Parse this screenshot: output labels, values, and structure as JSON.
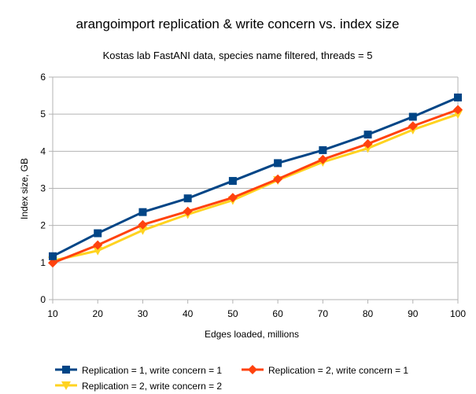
{
  "chart_data": {
    "type": "line",
    "title": "arangoimport replication & write concern vs. index size",
    "subtitle": "Kostas lab FastANI data, species name filtered, threads = 5",
    "xlabel": "Edges loaded, millions",
    "ylabel": "Index size, GB",
    "x": [
      10,
      20,
      30,
      40,
      50,
      60,
      70,
      80,
      90,
      100
    ],
    "xlim": [
      10,
      100
    ],
    "ylim": [
      0,
      6
    ],
    "xticks": [
      "10",
      "20",
      "30",
      "40",
      "50",
      "60",
      "70",
      "80",
      "90",
      "100"
    ],
    "yticks": [
      "0",
      "1",
      "2",
      "3",
      "4",
      "5",
      "6"
    ],
    "grid": "horizontal",
    "legend_position": "bottom",
    "series": [
      {
        "name": "Replication = 1, write concern = 1",
        "color": "#004586",
        "marker": "square",
        "values": [
          1.17,
          1.79,
          2.36,
          2.73,
          3.2,
          3.68,
          4.03,
          4.45,
          4.93,
          5.45
        ]
      },
      {
        "name": "Replication = 2, write concern = 1",
        "color": "#ff420e",
        "marker": "diamond",
        "values": [
          0.99,
          1.47,
          2.02,
          2.38,
          2.75,
          3.25,
          3.78,
          4.2,
          4.68,
          5.12
        ]
      },
      {
        "name": "Replication = 2, write concern = 2",
        "color": "#ffd320",
        "marker": "triangle-down",
        "values": [
          1.05,
          1.32,
          1.87,
          2.3,
          2.68,
          3.22,
          3.71,
          4.08,
          4.58,
          5.0
        ]
      }
    ]
  }
}
